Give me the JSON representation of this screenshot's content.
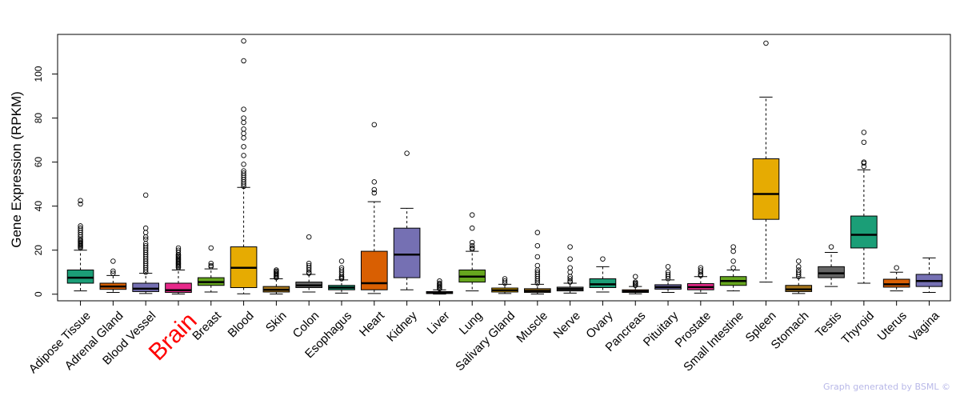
{
  "chart_data": {
    "type": "box",
    "title": "",
    "xlabel": "",
    "ylabel": "Gene Expression (RPKM)",
    "ylim": [
      -3,
      118
    ],
    "yticks": [
      0,
      20,
      40,
      60,
      80,
      100
    ],
    "highlight": "Brain",
    "highlight_color": "#ff0000",
    "boxes": [
      {
        "label": "Adipose Tissue",
        "color": "#1b9e77",
        "q1": 5,
        "median": 7.5,
        "q3": 11,
        "wlo": 1.5,
        "whi": 20,
        "outliers": [
          21,
          21.5,
          22,
          22.5,
          23,
          23.5,
          24,
          24.5,
          25,
          26,
          27,
          28,
          29,
          30,
          31,
          41,
          42.5
        ]
      },
      {
        "label": "Adrenal Gland",
        "color": "#d95f02",
        "q1": 2.2,
        "median": 3.5,
        "q3": 5,
        "wlo": 0.8,
        "whi": 8.5,
        "outliers": [
          9.5,
          10.5,
          15
        ]
      },
      {
        "label": "Blood Vessel",
        "color": "#7570b3",
        "q1": 1.2,
        "median": 2.5,
        "q3": 5,
        "wlo": 0.3,
        "whi": 9.5,
        "outliers": [
          10,
          11,
          12,
          13,
          14,
          15,
          16,
          17,
          18,
          19,
          20,
          21,
          22,
          23,
          25,
          26,
          28,
          30,
          45
        ]
      },
      {
        "label": "Brain",
        "color": "#e7298a",
        "q1": 0.8,
        "median": 1.8,
        "q3": 5,
        "wlo": 0.1,
        "whi": 11,
        "outliers": [
          12,
          12.5,
          13,
          13.5,
          14,
          14.5,
          15,
          15.5,
          16,
          16.5,
          17,
          17.5,
          18,
          19,
          20,
          21
        ]
      },
      {
        "label": "Breast",
        "color": "#66a61e",
        "q1": 4,
        "median": 5.5,
        "q3": 7.5,
        "wlo": 1,
        "whi": 11.5,
        "outliers": [
          12.5,
          13,
          14,
          21
        ]
      },
      {
        "label": "Blood",
        "color": "#e6ab02",
        "q1": 3,
        "median": 12,
        "q3": 21.5,
        "wlo": 0.2,
        "whi": 48.5,
        "outliers": [
          49,
          50,
          51,
          52,
          53,
          54,
          55,
          56,
          59,
          63,
          67,
          71,
          73,
          75,
          78,
          80,
          84,
          106,
          115
        ]
      },
      {
        "label": "Skin",
        "color": "#a6761d",
        "q1": 1,
        "median": 2,
        "q3": 3.5,
        "wlo": 0.1,
        "whi": 7,
        "outliers": [
          7.5,
          8,
          8.5,
          9,
          9.5,
          10,
          10.5,
          11
        ]
      },
      {
        "label": "Colon",
        "color": "#666666",
        "q1": 3,
        "median": 4,
        "q3": 5.5,
        "wlo": 1,
        "whi": 9,
        "outliers": [
          9.5,
          10,
          11,
          12,
          13,
          14,
          26
        ]
      },
      {
        "label": "Esophagus",
        "color": "#1b9e77",
        "q1": 2,
        "median": 3,
        "q3": 4,
        "wlo": 0.5,
        "whi": 6.5,
        "outliers": [
          7,
          7.5,
          8,
          9,
          10,
          11,
          12,
          15
        ]
      },
      {
        "label": "Heart",
        "color": "#d95f02",
        "q1": 2,
        "median": 5,
        "q3": 19.5,
        "wlo": 0.3,
        "whi": 42,
        "outliers": [
          46,
          47.5,
          51,
          77
        ]
      },
      {
        "label": "Kidney",
        "color": "#7570b3",
        "q1": 7.5,
        "median": 18,
        "q3": 30,
        "wlo": 2,
        "whi": 39,
        "outliers": [
          64
        ]
      },
      {
        "label": "Liver",
        "color": "#e7298a",
        "q1": 0.3,
        "median": 0.7,
        "q3": 1.2,
        "wlo": 0.05,
        "whi": 2,
        "outliers": [
          2.5,
          3,
          3.5,
          4,
          4.5,
          5,
          6
        ]
      },
      {
        "label": "Lung",
        "color": "#66a61e",
        "q1": 5.5,
        "median": 8,
        "q3": 11,
        "wlo": 1.5,
        "whi": 19.5,
        "outliers": [
          20.5,
          21,
          22,
          23.5,
          30,
          36
        ]
      },
      {
        "label": "Salivary Gland",
        "color": "#e6ab02",
        "q1": 1,
        "median": 1.8,
        "q3": 2.8,
        "wlo": 0.3,
        "whi": 4.5,
        "outliers": [
          5,
          6,
          7
        ]
      },
      {
        "label": "Muscle",
        "color": "#a6761d",
        "q1": 0.8,
        "median": 1.5,
        "q3": 2.5,
        "wlo": 0.1,
        "whi": 4.5,
        "outliers": [
          5,
          6,
          7,
          8,
          9,
          10,
          11,
          13,
          17,
          22,
          28
        ]
      },
      {
        "label": "Nerve",
        "color": "#666666",
        "q1": 1.5,
        "median": 2.3,
        "q3": 3.2,
        "wlo": 0.5,
        "whi": 5,
        "outliers": [
          5.5,
          6,
          7,
          8,
          10,
          12,
          16,
          21.5
        ]
      },
      {
        "label": "Ovary",
        "color": "#1b9e77",
        "q1": 3,
        "median": 4.5,
        "q3": 7,
        "wlo": 1,
        "whi": 12.5,
        "outliers": [
          16
        ]
      },
      {
        "label": "Pancreas",
        "color": "#d95f02",
        "q1": 0.8,
        "median": 1.3,
        "q3": 2,
        "wlo": 0.2,
        "whi": 3.5,
        "outliers": [
          4,
          4.5,
          5,
          5.5,
          8
        ]
      },
      {
        "label": "Pituitary",
        "color": "#7570b3",
        "q1": 2.3,
        "median": 3.2,
        "q3": 4.3,
        "wlo": 0.8,
        "whi": 6.5,
        "outliers": [
          7,
          8,
          9,
          10,
          12.5
        ]
      },
      {
        "label": "Prostate",
        "color": "#e7298a",
        "q1": 2,
        "median": 3.2,
        "q3": 4.8,
        "wlo": 0.5,
        "whi": 8,
        "outliers": [
          8.5,
          9,
          10,
          11,
          12
        ]
      },
      {
        "label": "Small Intestine",
        "color": "#66a61e",
        "q1": 4,
        "median": 6,
        "q3": 8,
        "wlo": 1.5,
        "whi": 11,
        "outliers": [
          12,
          15,
          19.5,
          21.5
        ]
      },
      {
        "label": "Spleen",
        "color": "#e6ab02",
        "q1": 34,
        "median": 45.5,
        "q3": 61.5,
        "wlo": 5.5,
        "whi": 89.5,
        "outliers": [
          114
        ]
      },
      {
        "label": "Stomach",
        "color": "#a6761d",
        "q1": 1.2,
        "median": 2.2,
        "q3": 4,
        "wlo": 0.3,
        "whi": 7.5,
        "outliers": [
          8,
          9,
          10,
          11,
          12.5,
          15
        ]
      },
      {
        "label": "Testis",
        "color": "#666666",
        "q1": 7.5,
        "median": 9.5,
        "q3": 12.5,
        "wlo": 3.5,
        "whi": 19,
        "outliers": [
          21.5
        ]
      },
      {
        "label": "Thyroid",
        "color": "#1b9e77",
        "q1": 21,
        "median": 27,
        "q3": 35.5,
        "wlo": 5,
        "whi": 56.5,
        "outliers": [
          58,
          59.5,
          60,
          69,
          73.5
        ]
      },
      {
        "label": "Uterus",
        "color": "#d95f02",
        "q1": 3.2,
        "median": 4.5,
        "q3": 6.8,
        "wlo": 1.5,
        "whi": 10,
        "outliers": [
          12
        ]
      },
      {
        "label": "Vagina",
        "color": "#7570b3",
        "q1": 3.5,
        "median": 6,
        "q3": 9,
        "wlo": 0.8,
        "whi": 16.5,
        "outliers": []
      }
    ]
  },
  "credit": "Graph generated by BSML ©"
}
